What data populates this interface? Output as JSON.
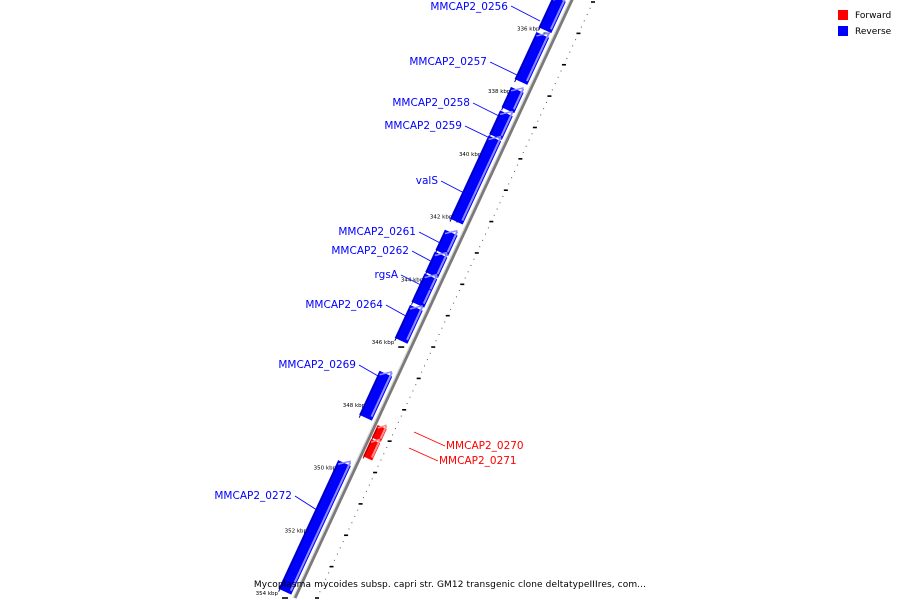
{
  "title": "Mycoplasma mycoides subsp. capri str. GM12 transgenic clone deltatypeIIIres, com...",
  "colors": {
    "forward": "#ff0000",
    "reverse": "#0000ff",
    "axis": "#808080"
  },
  "legend": [
    {
      "name": "Forward",
      "color": "#ff0000"
    },
    {
      "name": "Reverse",
      "color": "#0000ff"
    }
  ],
  "chart_data": {
    "type": "gene-map",
    "units": "bp",
    "range": [
      135000,
      353800
    ],
    "ticks": [
      {
        "pos": 336000,
        "label": "336 kbp"
      },
      {
        "pos": 338000,
        "label": "338 kbp"
      },
      {
        "pos": 340000,
        "label": "340 kbp"
      },
      {
        "pos": 342000,
        "label": "342 kbp"
      },
      {
        "pos": 344000,
        "label": "344 kbp"
      },
      {
        "pos": 346000,
        "label": "346 kbp"
      },
      {
        "pos": 348000,
        "label": "348 kbp"
      },
      {
        "pos": 350000,
        "label": "350 kbp"
      },
      {
        "pos": 352000,
        "label": "352 kbp"
      },
      {
        "pos": 354000,
        "label": "354 kbp"
      }
    ],
    "genes": [
      {
        "name": "MMCAP2_0256",
        "start": 334900,
        "end": 335900,
        "strand": "reverse"
      },
      {
        "name": "MMCAP2_0257",
        "start": 336050,
        "end": 337550,
        "strand": "reverse"
      },
      {
        "name": "MMCAP2_0258",
        "start": 337800,
        "end": 338450,
        "strand": "reverse"
      },
      {
        "name": "MMCAP2_0259",
        "start": 338550,
        "end": 339300,
        "strand": "reverse"
      },
      {
        "name": "valS",
        "start": 339350,
        "end": 342000,
        "strand": "reverse"
      },
      {
        "name": "MMCAP2_0261",
        "start": 342350,
        "end": 343000,
        "strand": "reverse"
      },
      {
        "name": "MMCAP2_0262",
        "start": 343050,
        "end": 343700,
        "strand": "reverse"
      },
      {
        "name": "rgsA",
        "start": 343750,
        "end": 344650,
        "strand": "reverse"
      },
      {
        "name": "MMCAP2_0264",
        "start": 344750,
        "end": 345800,
        "strand": "reverse"
      },
      {
        "name": "MMCAP2_0269",
        "start": 346850,
        "end": 348250,
        "strand": "reverse"
      },
      {
        "name": "MMCAP2_0270",
        "start": 348550,
        "end": 348950,
        "strand": "forward"
      },
      {
        "name": "MMCAP2_0271",
        "start": 349000,
        "end": 349550,
        "strand": "forward"
      },
      {
        "name": "MMCAP2_0272",
        "start": 349700,
        "end": 353800,
        "strand": "reverse"
      }
    ]
  }
}
